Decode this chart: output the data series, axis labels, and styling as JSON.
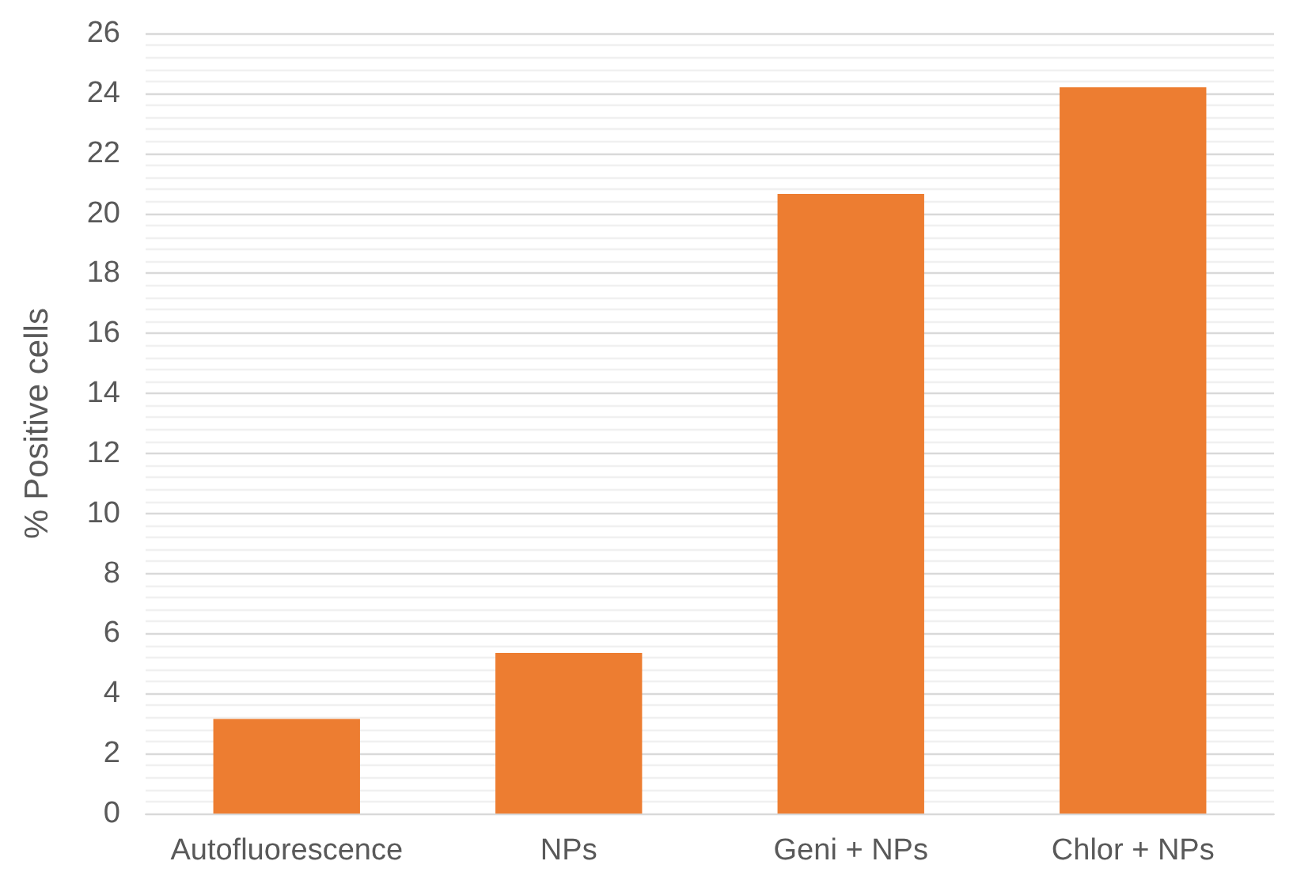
{
  "chart_data": {
    "type": "bar",
    "ylabel": "% Positive cells",
    "categories": [
      "Autofluorescence",
      "NPs",
      "Geni + NPs",
      "Chlor + NPs"
    ],
    "values": [
      3.15,
      5.35,
      20.65,
      24.2
    ],
    "color": "#ed7d31",
    "ylim": [
      0,
      26
    ],
    "yticks": [
      0,
      2,
      4,
      6,
      8,
      10,
      12,
      14,
      16,
      18,
      20,
      22,
      24,
      26
    ],
    "grid": "y"
  }
}
